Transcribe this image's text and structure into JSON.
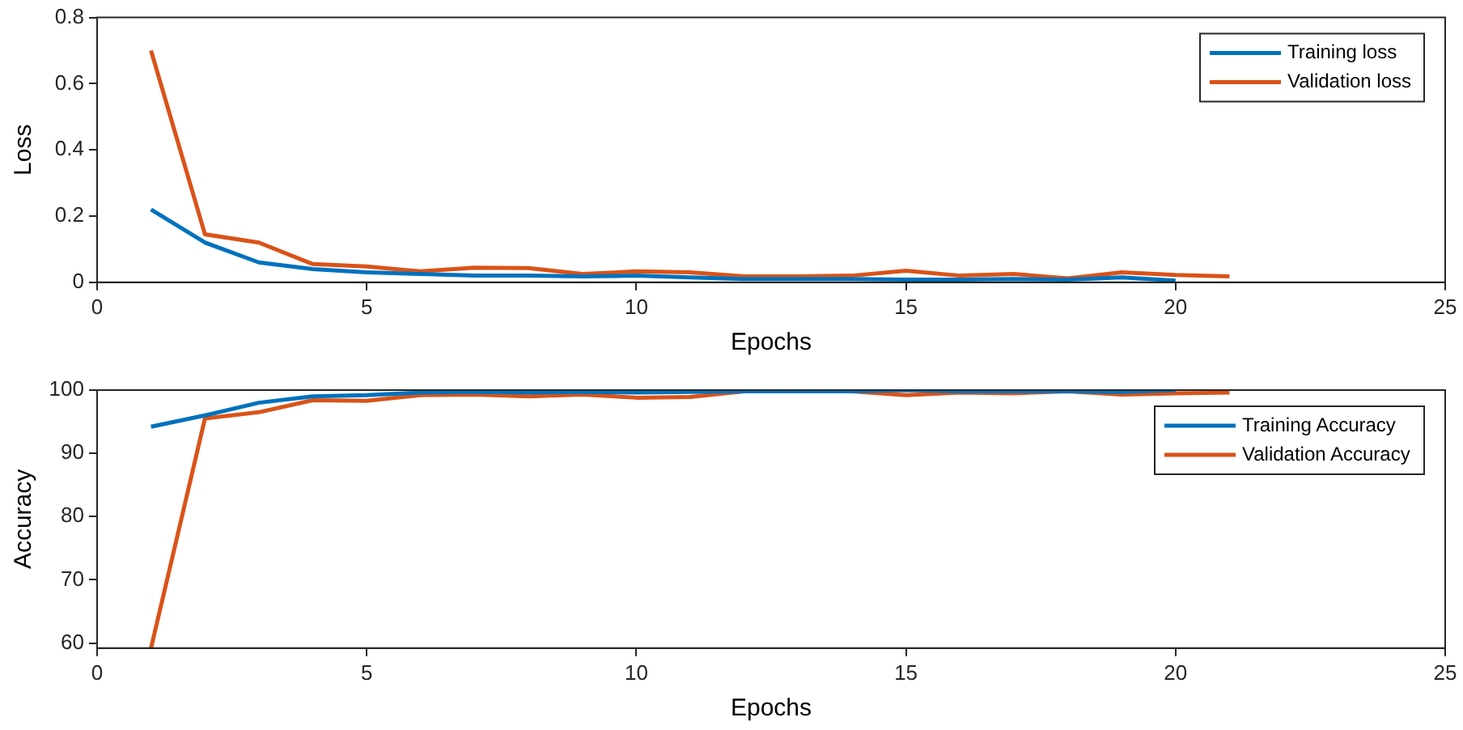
{
  "chart_data": [
    {
      "type": "line",
      "xlabel": "Epochs",
      "ylabel": "Loss",
      "x": [
        1,
        2,
        3,
        4,
        5,
        6,
        7,
        8,
        9,
        10,
        11,
        12,
        13,
        14,
        15,
        16,
        17,
        18,
        19,
        20,
        21
      ],
      "xlim": [
        0,
        25
      ],
      "xticks": [
        0,
        5,
        10,
        15,
        20,
        25
      ],
      "ylim": [
        0,
        0.8
      ],
      "yticks": [
        0,
        0.2,
        0.4,
        0.6,
        0.8
      ],
      "grid": false,
      "legend": "top right",
      "marker": "none",
      "line_style": "solid",
      "series": [
        {
          "name": "Training loss",
          "color": "#0072bd",
          "values": [
            0.22,
            0.12,
            0.06,
            0.04,
            0.03,
            0.025,
            0.02,
            0.02,
            0.018,
            0.02,
            0.015,
            0.01,
            0.01,
            0.01,
            0.008,
            0.008,
            0.01,
            0.008,
            0.015,
            0.005,
            null
          ]
        },
        {
          "name": "Validation loss",
          "color": "#d95319",
          "values": [
            0.7,
            0.145,
            0.12,
            0.055,
            0.048,
            0.033,
            0.044,
            0.043,
            0.025,
            0.033,
            0.03,
            0.018,
            0.018,
            0.02,
            0.035,
            0.02,
            0.025,
            0.012,
            0.03,
            0.022,
            0.018
          ]
        }
      ]
    },
    {
      "type": "line",
      "xlabel": "Epochs",
      "ylabel": "Accuracy",
      "x": [
        1,
        2,
        3,
        4,
        5,
        6,
        7,
        8,
        9,
        10,
        11,
        12,
        13,
        14,
        15,
        16,
        17,
        18,
        19,
        20,
        21
      ],
      "xlim": [
        0,
        25
      ],
      "xticks": [
        0,
        5,
        10,
        15,
        20,
        25
      ],
      "ylim": [
        59.2,
        100
      ],
      "yticks": [
        60,
        70,
        80,
        90,
        100
      ],
      "grid": false,
      "legend": "top right",
      "marker": "none",
      "line_style": "solid",
      "series": [
        {
          "name": "Training Accuracy",
          "color": "#0072bd",
          "values": [
            94.2,
            96,
            98,
            99,
            99.2,
            99.6,
            99.7,
            99.6,
            99.7,
            99.6,
            99.7,
            99.8,
            99.8,
            99.8,
            100,
            99.8,
            99.8,
            99.8,
            99.7,
            100,
            null
          ]
        },
        {
          "name": "Validation Accuracy",
          "color": "#d95319",
          "values": [
            59.2,
            95.5,
            96.5,
            98.4,
            98.3,
            99.2,
            99.3,
            99,
            99.3,
            98.8,
            98.9,
            99.8,
            99.8,
            99.8,
            99.2,
            99.6,
            99.5,
            99.8,
            99.3,
            99.5,
            99.6
          ]
        }
      ]
    }
  ]
}
